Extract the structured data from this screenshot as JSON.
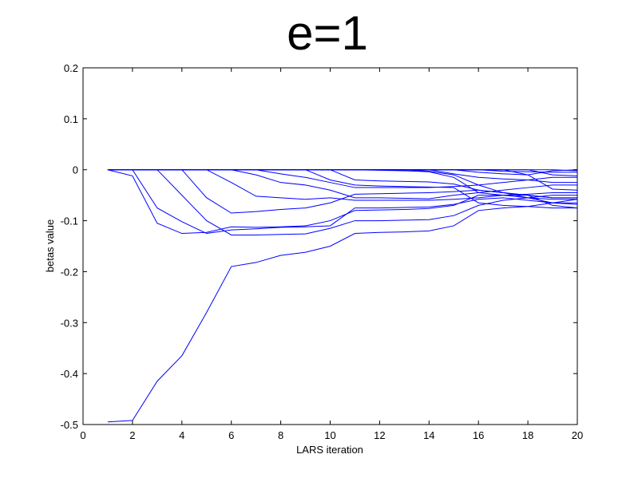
{
  "chart_data": {
    "type": "line",
    "title": "e=1",
    "xlabel": "LARS iteration",
    "ylabel": "betas value",
    "xlim": [
      0,
      20
    ],
    "ylim": [
      -0.5,
      0.2
    ],
    "xticks": [
      0,
      2,
      4,
      6,
      8,
      10,
      12,
      14,
      16,
      18,
      20
    ],
    "yticks": [
      -0.5,
      -0.4,
      -0.3,
      -0.2,
      -0.1,
      0,
      0.1,
      0.2
    ],
    "xtick_labels": [
      "0",
      "2",
      "4",
      "6",
      "8",
      "10",
      "12",
      "14",
      "16",
      "18",
      "20"
    ],
    "ytick_labels": [
      "-0.5",
      "-0.4",
      "-0.3",
      "-0.2",
      "-0.1",
      "0",
      "0.1",
      "0.2"
    ],
    "grid": false,
    "line_color": "#0000ff",
    "x": [
      1,
      2,
      3,
      4,
      5,
      6,
      7,
      8,
      9,
      10,
      11,
      12,
      13,
      14,
      15,
      16,
      17,
      18,
      19,
      20
    ],
    "series": [
      {
        "values": [
          -0.495,
          -0.492,
          -0.415,
          -0.365,
          -0.28,
          -0.19,
          -0.182,
          -0.168,
          -0.162,
          -0.15,
          -0.125,
          -0.123,
          -0.122,
          -0.12,
          -0.11,
          -0.08,
          -0.075,
          -0.072,
          -0.065,
          -0.058
        ]
      },
      {
        "values": [
          0,
          -0.012,
          -0.105,
          -0.125,
          -0.123,
          -0.112,
          -0.113,
          -0.112,
          -0.11,
          -0.1,
          -0.08,
          -0.079,
          -0.078,
          -0.076,
          -0.07,
          -0.05,
          -0.05,
          -0.055,
          -0.058,
          -0.058
        ]
      },
      {
        "values": [
          0,
          0,
          -0.075,
          -0.102,
          -0.125,
          -0.118,
          -0.116,
          -0.113,
          -0.112,
          -0.11,
          -0.075,
          -0.075,
          -0.074,
          -0.073,
          -0.068,
          -0.058,
          -0.055,
          -0.06,
          -0.065,
          -0.065
        ]
      },
      {
        "values": [
          0,
          0,
          0,
          -0.05,
          -0.1,
          -0.128,
          -0.128,
          -0.127,
          -0.126,
          -0.115,
          -0.1,
          -0.1,
          -0.099,
          -0.098,
          -0.09,
          -0.07,
          -0.06,
          -0.055,
          -0.05,
          -0.05
        ]
      },
      {
        "values": [
          0,
          0,
          0,
          0,
          -0.055,
          -0.085,
          -0.082,
          -0.078,
          -0.075,
          -0.065,
          -0.048,
          -0.047,
          -0.046,
          -0.045,
          -0.043,
          -0.04,
          -0.045,
          -0.05,
          -0.07,
          -0.075
        ]
      },
      {
        "values": [
          0,
          0,
          0,
          0,
          0,
          -0.025,
          -0.052,
          -0.055,
          -0.058,
          -0.055,
          -0.06,
          -0.06,
          -0.06,
          -0.06,
          -0.058,
          -0.055,
          -0.05,
          -0.048,
          -0.045,
          -0.045
        ]
      },
      {
        "values": [
          0,
          0,
          0,
          0,
          0,
          0,
          -0.01,
          -0.025,
          -0.03,
          -0.04,
          -0.055,
          -0.055,
          -0.056,
          -0.057,
          -0.05,
          -0.045,
          -0.04,
          -0.035,
          -0.03,
          -0.03
        ]
      },
      {
        "values": [
          0,
          0,
          0,
          0,
          0,
          0,
          0,
          -0.008,
          -0.015,
          -0.025,
          -0.035,
          -0.035,
          -0.035,
          -0.035,
          -0.033,
          -0.03,
          -0.025,
          -0.02,
          -0.015,
          -0.015
        ]
      },
      {
        "values": [
          0,
          0,
          0,
          0,
          0,
          0,
          0,
          0,
          0,
          -0.02,
          -0.03,
          -0.032,
          -0.033,
          -0.034,
          -0.035,
          -0.065,
          -0.07,
          -0.072,
          -0.075,
          -0.075
        ]
      },
      {
        "values": [
          0,
          0,
          0,
          0,
          0,
          0,
          0,
          0,
          0,
          0,
          -0.02,
          -0.022,
          -0.023,
          -0.024,
          -0.028,
          -0.04,
          -0.045,
          -0.05,
          -0.055,
          -0.055
        ]
      },
      {
        "values": [
          0,
          0,
          0,
          0,
          0,
          0,
          0,
          0,
          0,
          0,
          0,
          -0.001,
          -0.002,
          -0.004,
          -0.015,
          -0.045,
          -0.05,
          -0.05,
          -0.055,
          -0.055
        ]
      },
      {
        "values": [
          0,
          0,
          0,
          0,
          0,
          0,
          0,
          0,
          0,
          0,
          0,
          0,
          0,
          -0.003,
          -0.01,
          -0.03,
          -0.045,
          -0.055,
          -0.065,
          -0.068
        ]
      },
      {
        "values": [
          0,
          0,
          0,
          0,
          0,
          0,
          0,
          0,
          0,
          0,
          0,
          0,
          0,
          0,
          -0.008,
          -0.015,
          -0.018,
          -0.02,
          -0.025,
          -0.025
        ]
      },
      {
        "values": [
          0,
          0,
          0,
          0,
          0,
          0,
          0,
          0,
          0,
          0,
          0,
          0,
          0,
          0,
          0,
          -0.005,
          -0.008,
          -0.01,
          -0.002,
          0
        ]
      },
      {
        "values": [
          0,
          0,
          0,
          0,
          0,
          0,
          0,
          0,
          0,
          0,
          0,
          0,
          0,
          0,
          0,
          0,
          -0.003,
          -0.004,
          -0.005,
          -0.005
        ]
      },
      {
        "values": [
          0,
          0,
          0,
          0,
          0,
          0,
          0,
          0,
          0,
          0,
          0,
          0,
          0,
          0,
          0,
          0,
          0,
          -0.01,
          -0.038,
          -0.04
        ]
      },
      {
        "values": [
          0,
          0,
          0,
          0,
          0,
          0,
          0,
          0,
          0,
          0,
          0,
          0,
          0,
          0,
          0,
          0,
          0,
          0,
          -0.01,
          -0.012
        ]
      },
      {
        "values": [
          0,
          0,
          0,
          0,
          0,
          0,
          0,
          0,
          0,
          0,
          0,
          0,
          0,
          0,
          0,
          0,
          0,
          0,
          0,
          -0.002
        ]
      }
    ]
  }
}
